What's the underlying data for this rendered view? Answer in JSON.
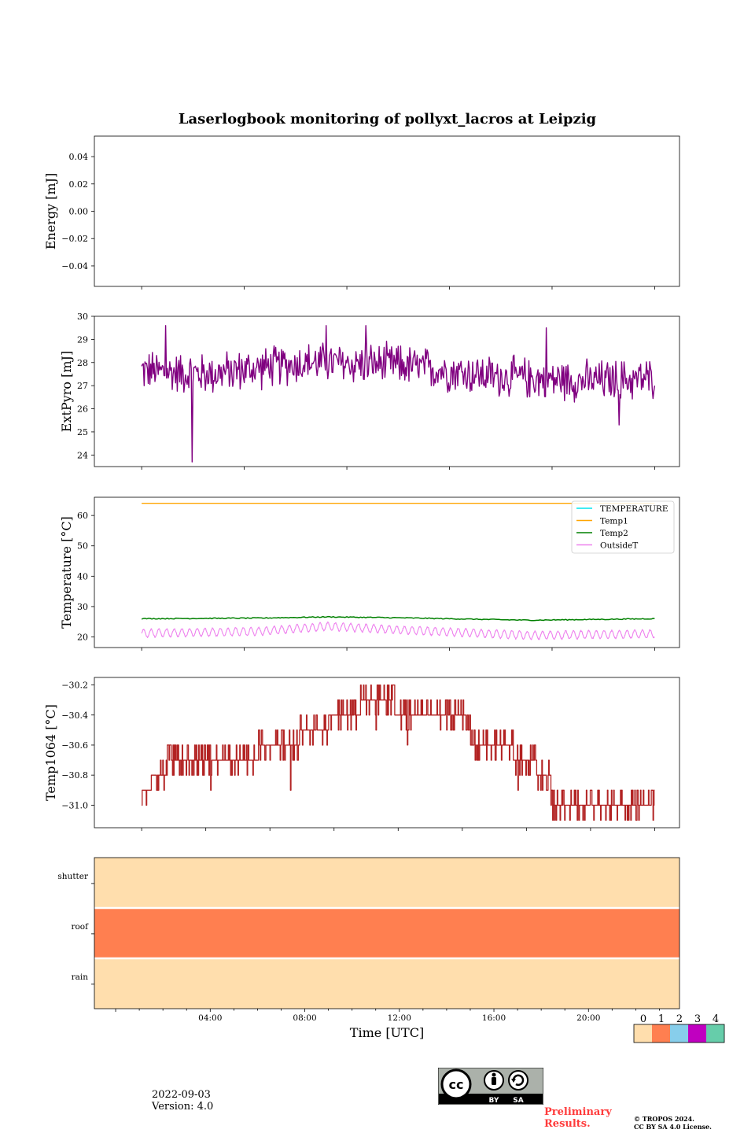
{
  "figure": {
    "title": "Laserlogbook monitoring of pollyxt_lacros at Leipzig",
    "date": "2022-09-03",
    "version": "Version: 4.0",
    "preliminary": "Preliminary Results.",
    "copyright_line1": "© TROPOS 2024.",
    "copyright_line2": "CC BY SA 4.0 License.",
    "cc_badge": {
      "icon": "cc-by-sa-license-icon",
      "by_label": "BY",
      "sa_label": "SA"
    }
  },
  "colors": {
    "extpyro": "#800080",
    "temperature": "#00e5ee",
    "temp1": "#ffa500",
    "temp2": "#008000",
    "outsidet": "#ee82ee",
    "temp1064": "#b22222",
    "status_palette": [
      "#ffdead",
      "#ff7f50",
      "#87ceeb",
      "#c000c0",
      "#66cdaa"
    ]
  },
  "chart_data": [
    {
      "id": "energy",
      "type": "line",
      "ylabel": "Energy [mJ]",
      "ylim": [
        -0.055,
        0.055
      ],
      "yticks": [
        0.04,
        0.02,
        0.0,
        -0.02,
        -0.04
      ],
      "ytick_labels": [
        "0.04",
        "0.02",
        "0.00",
        "−0.02",
        "−0.04"
      ],
      "series": []
    },
    {
      "id": "extpyro",
      "type": "line",
      "ylabel": "ExtPyro [mJ]",
      "ylim": [
        23.5,
        30
      ],
      "yticks": [
        24,
        25,
        26,
        27,
        28,
        29,
        30
      ],
      "ytick_labels": [
        "24",
        "25",
        "26",
        "27",
        "28",
        "29",
        "30"
      ],
      "x_range_hours": [
        1.1,
        22.8
      ],
      "baseline_hours": [
        0,
        4,
        8,
        12,
        16,
        20,
        22.8
      ],
      "baseline_values": [
        27.7,
        27.5,
        28.0,
        27.9,
        27.4,
        27.2,
        27.3
      ],
      "noise_amplitude": 0.75,
      "spikes": [
        {
          "x": 3.25,
          "y": 23.7
        },
        {
          "x": 2.1,
          "y": 29.6
        },
        {
          "x": 8.9,
          "y": 29.6
        },
        {
          "x": 10.6,
          "y": 29.6
        },
        {
          "x": 18.2,
          "y": 29.5
        },
        {
          "x": 21.3,
          "y": 25.3
        }
      ]
    },
    {
      "id": "temperature",
      "type": "line",
      "ylabel": "Temperature [°C]",
      "ylim": [
        16.5,
        66
      ],
      "yticks": [
        20,
        30,
        40,
        50,
        60
      ],
      "ytick_labels": [
        "20",
        "30",
        "40",
        "50",
        "60"
      ],
      "x_range_hours": [
        1.1,
        22.8
      ],
      "legend_position": "top-right",
      "series": [
        {
          "name": "TEMPERATURE",
          "color_key": "temperature",
          "values": []
        },
        {
          "name": "Temp1",
          "color_key": "temp1",
          "constant": 64
        },
        {
          "name": "Temp2",
          "color_key": "temp2",
          "baseline_hours": [
            1.1,
            6,
            9,
            12,
            17.5,
            22.8
          ],
          "baseline_values": [
            26.0,
            26.2,
            26.6,
            26.3,
            25.5,
            26.0
          ]
        },
        {
          "name": "OutsideT",
          "color_key": "outsidet",
          "baseline_hours": [
            1.1,
            6,
            9,
            12,
            17.5,
            22.8
          ],
          "baseline_values": [
            21.2,
            21.8,
            23.5,
            22.3,
            20.5,
            21.0
          ],
          "oscillation_amplitude": 1.3
        }
      ]
    },
    {
      "id": "temp1064",
      "type": "line",
      "ylabel": "Temp1064 [°C]",
      "ylim": [
        -31.15,
        -30.15
      ],
      "yticks": [
        -30.2,
        -30.4,
        -30.6,
        -30.8,
        -31.0
      ],
      "ytick_labels": [
        "−30.2",
        "−30.4",
        "−30.6",
        "−30.8",
        "−31.0"
      ],
      "x_range_hours": [
        1.1,
        22.8
      ],
      "step_hours": [
        1.1,
        1.5,
        2.1,
        3.0,
        6.0,
        7.8,
        9.0,
        10.3,
        11.8,
        14.5,
        15.0,
        16.8,
        17.8,
        18.4,
        22.8
      ],
      "step_values": [
        -30.9,
        -30.8,
        -30.7,
        -30.7,
        -30.6,
        -30.5,
        -30.4,
        -30.3,
        -30.4,
        -30.4,
        -30.6,
        -30.7,
        -30.8,
        -31.0,
        -31.0
      ],
      "excursion_step": 0.1
    },
    {
      "id": "status",
      "type": "heatmap",
      "rows": [
        "shutter",
        "roof",
        "rain"
      ],
      "row_values": [
        0,
        1,
        0
      ],
      "xlabel": "Time [UTC]",
      "xticks_hours": [
        4,
        8,
        12,
        16,
        20
      ],
      "xtick_labels": [
        "04:00",
        "08:00",
        "12:00",
        "16:00",
        "20:00"
      ],
      "colorbar_labels": [
        "0",
        "1",
        "2",
        "3",
        "4"
      ]
    }
  ]
}
